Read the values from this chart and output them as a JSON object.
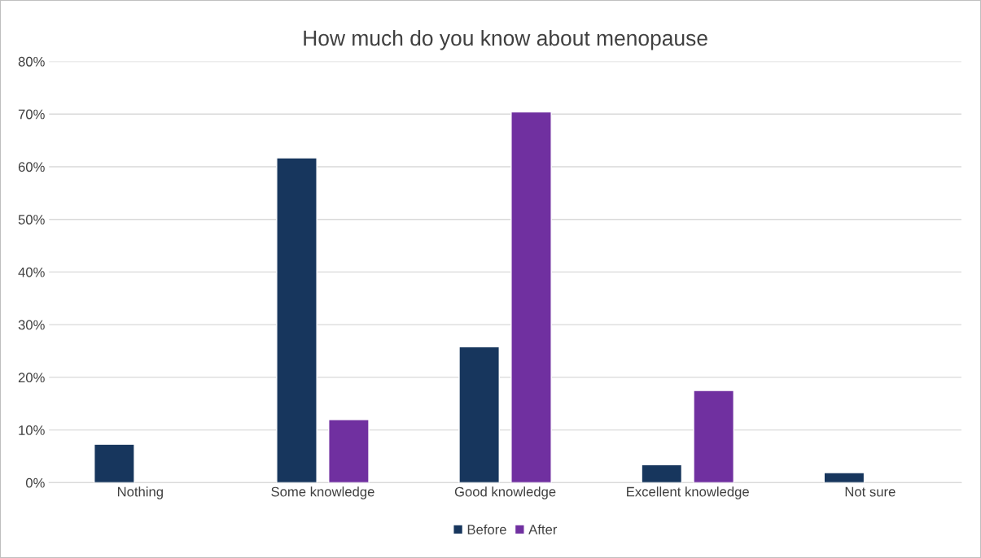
{
  "chart_data": {
    "type": "bar",
    "title": "How much do you know about menopause",
    "categories": [
      "Nothing",
      "Some knowledge",
      "Good knowledge",
      "Excellent knowledge",
      "Not sure"
    ],
    "series": [
      {
        "name": "Before",
        "color": "#17365d",
        "values": [
          7.3,
          61.7,
          25.8,
          3.4,
          1.9
        ]
      },
      {
        "name": "After",
        "color": "#7030a0",
        "values": [
          null,
          12.0,
          70.4,
          17.5,
          null
        ]
      }
    ],
    "ylim": [
      0,
      80
    ],
    "yticks": [
      {
        "value": 0,
        "label": "0%"
      },
      {
        "value": 10,
        "label": "10%"
      },
      {
        "value": 20,
        "label": "20%"
      },
      {
        "value": 30,
        "label": "30%"
      },
      {
        "value": 40,
        "label": "40%"
      },
      {
        "value": 50,
        "label": "50%"
      },
      {
        "value": 60,
        "label": "60%"
      },
      {
        "value": 70,
        "label": "70%"
      },
      {
        "value": 80,
        "label": "80%"
      }
    ],
    "grid": "y",
    "legend": "bottom"
  }
}
